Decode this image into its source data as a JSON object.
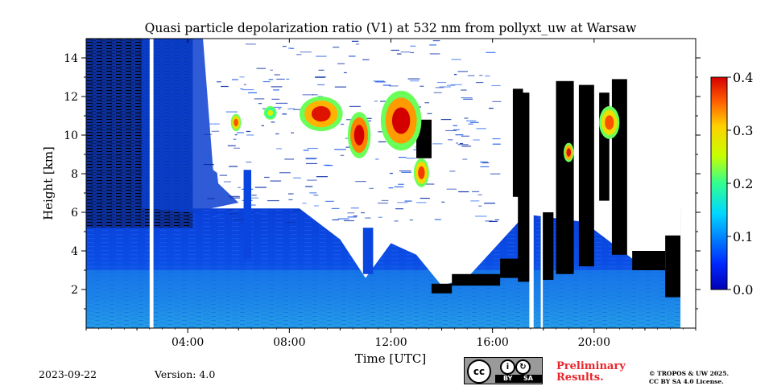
{
  "chart_data": {
    "type": "heatmap",
    "title": "Quasi particle depolarization ratio (V1) at 532 nm from pollyxt_uw at Warsaw",
    "xlabel": "Time [UTC]",
    "ylabel": "Height [km]",
    "xlim": [
      0,
      24
    ],
    "ylim": [
      0,
      15
    ],
    "x_ticks": [
      {
        "value": 4,
        "label": "04:00"
      },
      {
        "value": 8,
        "label": "08:00"
      },
      {
        "value": 12,
        "label": "12:00"
      },
      {
        "value": 16,
        "label": "16:00"
      },
      {
        "value": 20,
        "label": "20:00"
      }
    ],
    "x_minor_ticks": [
      0,
      2,
      6,
      10,
      14,
      18,
      22,
      24
    ],
    "y_ticks": [
      {
        "value": 2,
        "label": "2"
      },
      {
        "value": 4,
        "label": "4"
      },
      {
        "value": 6,
        "label": "6"
      },
      {
        "value": 8,
        "label": "8"
      },
      {
        "value": 10,
        "label": "10"
      },
      {
        "value": 12,
        "label": "12"
      },
      {
        "value": 14,
        "label": "14"
      }
    ],
    "colorbar": {
      "min": 0.0,
      "max": 0.4,
      "ticks": [
        {
          "value": 0.0,
          "label": "0.0"
        },
        {
          "value": 0.1,
          "label": "0.1"
        },
        {
          "value": 0.2,
          "label": "0.2"
        },
        {
          "value": 0.3,
          "label": "0.3"
        },
        {
          "value": 0.4,
          "label": "0.4"
        }
      ],
      "colormap": "jet"
    },
    "background_regions": [
      {
        "name": "noisy-dark-blue-sky",
        "t0": 0.0,
        "t1": 4.0,
        "h0": 5.5,
        "h1": 15.0,
        "value": 0.02
      },
      {
        "name": "aerosol-layer",
        "t0": 0.0,
        "t1": 24.0,
        "h0": 0.0,
        "h1": 6.0,
        "value": 0.04
      },
      {
        "name": "boundary-layer",
        "t0": 0.0,
        "t1": 24.0,
        "h0": 0.0,
        "h1": 3.0,
        "value": 0.07
      }
    ],
    "cloud_features": [
      {
        "name": "cirrus-06utc",
        "t0": 5.7,
        "t1": 6.1,
        "h0": 10.2,
        "h1": 11.1,
        "value": 0.33
      },
      {
        "name": "cirrus-07utc",
        "t0": 7.0,
        "t1": 7.5,
        "h0": 10.8,
        "h1": 11.5,
        "value": 0.24
      },
      {
        "name": "cirrus-0830utc",
        "t0": 8.4,
        "t1": 10.1,
        "h0": 10.2,
        "h1": 12.0,
        "value": 0.36
      },
      {
        "name": "cirrus-1030utc",
        "t0": 10.3,
        "t1": 11.2,
        "h0": 8.8,
        "h1": 11.2,
        "value": 0.38
      },
      {
        "name": "cirrus-1230utc",
        "t0": 11.6,
        "t1": 13.2,
        "h0": 9.2,
        "h1": 12.3,
        "value": 0.37
      },
      {
        "name": "cirrus-1330utc",
        "t0": 12.9,
        "t1": 13.5,
        "h0": 7.3,
        "h1": 8.8,
        "value": 0.34
      },
      {
        "name": "cirrus-1930utc",
        "t0": 18.8,
        "t1": 19.2,
        "h0": 8.6,
        "h1": 9.6,
        "value": 0.36
      },
      {
        "name": "cirrus-2100utc",
        "t0": 20.2,
        "t1": 21.0,
        "h0": 9.8,
        "h1": 11.5,
        "value": 0.33
      }
    ],
    "no_data_gaps": [
      {
        "t0": 2.5,
        "t1": 2.65
      },
      {
        "t0": 17.45,
        "t1": 17.62
      },
      {
        "t0": 17.9,
        "t1": 17.98
      },
      {
        "t0": 23.4,
        "t1": 24.0
      }
    ]
  },
  "footer": {
    "date": "2023-09-22",
    "version": "Version: 4.0",
    "preliminary": [
      "Preliminary",
      "Results."
    ],
    "copyright": [
      "© TROPOS & UW 2025.",
      "CC BY SA 4.0 License."
    ],
    "license_badge": {
      "main": "cc",
      "by": "BY",
      "sa": "SA",
      "icon": "creative-commons-icon"
    }
  }
}
